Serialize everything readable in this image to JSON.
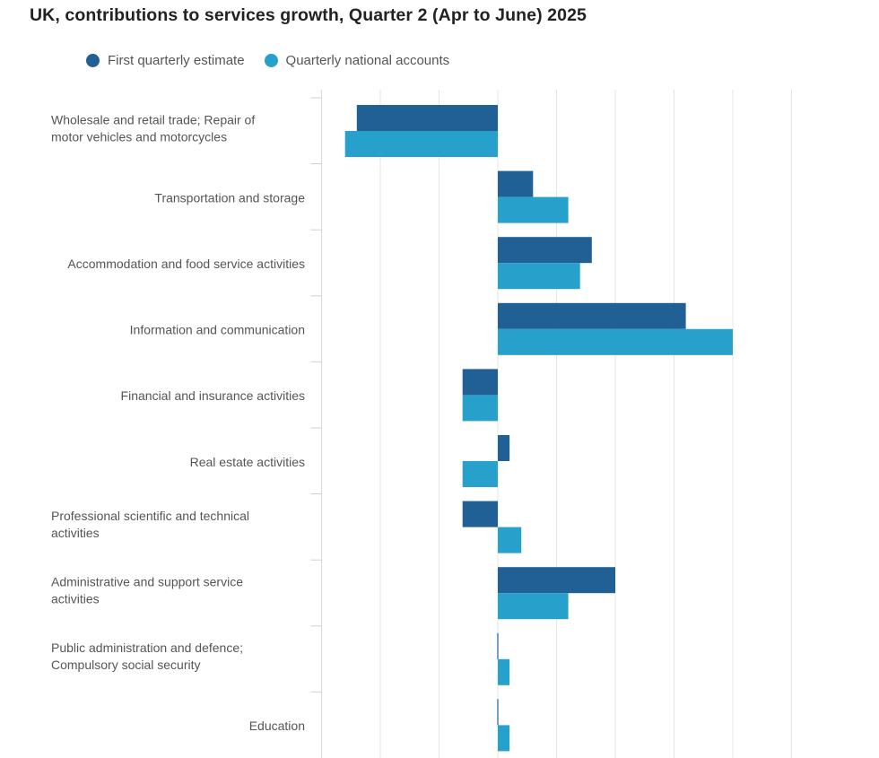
{
  "chart_data": {
    "type": "bar",
    "orientation": "horizontal",
    "title": "UK, contributions to services growth, Quarter 2 (Apr to June) 2025",
    "xlabel": "",
    "ylabel": "",
    "xlim": [
      -3,
      5
    ],
    "x_grid_step": 1,
    "grid": true,
    "legend_position": "top-left",
    "categories": [
      [
        "Wholesale and retail trade; Repair of",
        "motor vehicles and motorcycles"
      ],
      [
        "Transportation and storage"
      ],
      [
        "Accommodation and food service activities"
      ],
      [
        "Information and communication"
      ],
      [
        "Financial and insurance activities"
      ],
      [
        "Real estate activities"
      ],
      [
        "Professional scientific and technical",
        "activities"
      ],
      [
        "Administrative and support service",
        "activities"
      ],
      [
        "Public administration and defence;",
        "Compulsory social security"
      ],
      [
        "Education"
      ]
    ],
    "series": [
      {
        "name": "First quarterly estimate",
        "color": "#206095",
        "values": [
          -2.4,
          0.6,
          1.6,
          3.2,
          -0.6,
          0.2,
          -0.6,
          2.0,
          0.0,
          0.0
        ]
      },
      {
        "name": "Quarterly national accounts",
        "color": "#27a0cc",
        "values": [
          -2.6,
          1.2,
          1.4,
          4.0,
          -0.6,
          -0.6,
          0.4,
          1.2,
          0.2,
          0.2
        ]
      }
    ]
  }
}
